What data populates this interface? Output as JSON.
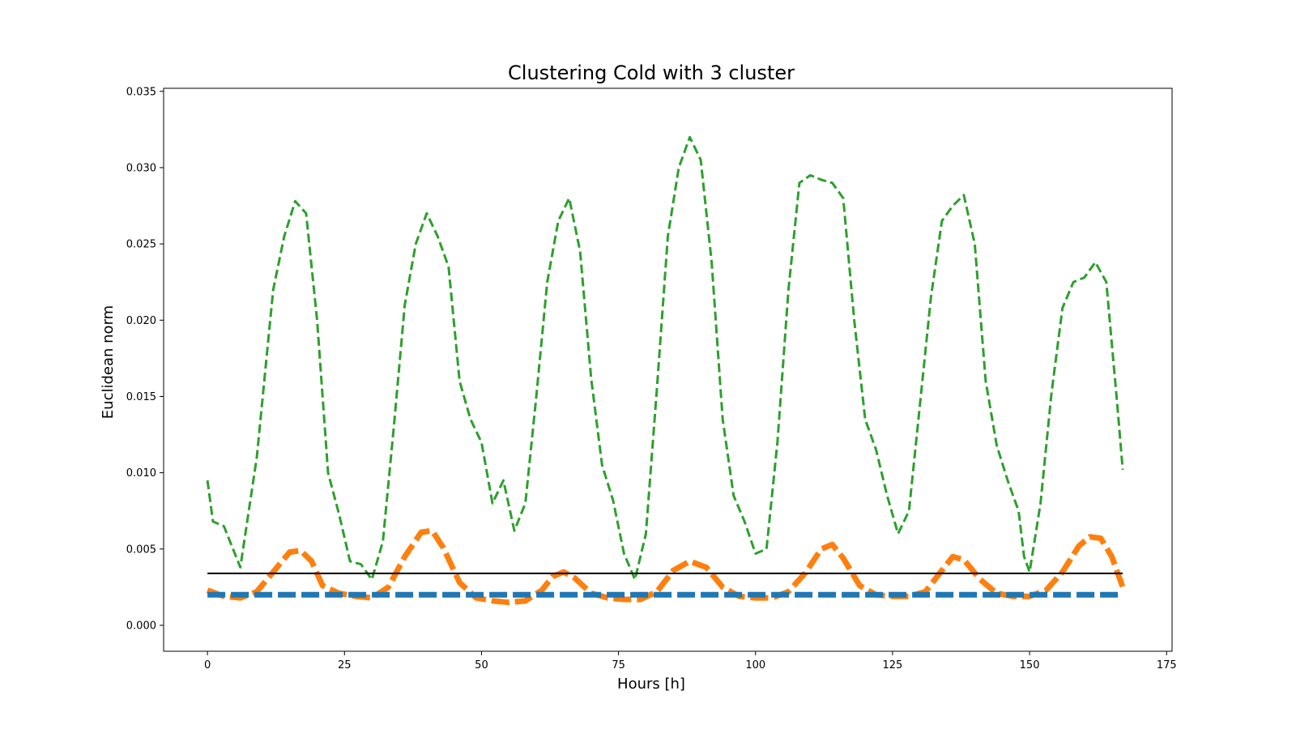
{
  "chart_data": {
    "type": "line",
    "title": "Clustering Cold with 3 cluster",
    "xlabel": "Hours [h]",
    "ylabel": "Euclidean norm",
    "xlim": [
      -8,
      176
    ],
    "ylim": [
      -0.0017,
      0.0352
    ],
    "xticks": [
      0,
      25,
      50,
      75,
      100,
      125,
      150,
      175
    ],
    "xtick_labels": [
      "0",
      "25",
      "50",
      "75",
      "100",
      "125",
      "150",
      "175"
    ],
    "yticks": [
      0.0,
      0.005,
      0.01,
      0.015,
      0.02,
      0.025,
      0.03,
      0.035
    ],
    "ytick_labels": [
      "0.000",
      "0.005",
      "0.010",
      "0.015",
      "0.020",
      "0.025",
      "0.030",
      "0.035"
    ],
    "grid": false,
    "legend": "none",
    "colors": {
      "green": "#2ca02c",
      "orange": "#ff7f0e",
      "blue": "#1f77b4",
      "black": "#000000",
      "gray": "#8c8c8c"
    },
    "series": [
      {
        "color": "#2ca02c",
        "style": "dashed",
        "x": [
          0,
          1,
          3,
          6,
          9,
          12,
          14,
          16,
          18,
          20,
          22,
          24,
          26,
          28,
          30,
          32,
          34,
          36,
          38,
          40,
          42,
          44,
          46,
          48,
          50,
          52,
          54,
          56,
          58,
          60,
          62,
          64,
          66,
          68,
          70,
          72,
          74,
          76,
          78,
          80,
          82,
          84,
          86,
          88,
          90,
          92,
          94,
          96,
          98,
          100,
          102,
          104,
          106,
          108,
          110,
          112,
          114,
          116,
          118,
          120,
          122,
          124,
          126,
          128,
          130,
          132,
          134,
          136,
          138,
          140,
          142,
          144,
          146,
          148,
          149,
          150,
          152,
          154,
          156,
          158,
          160,
          162,
          164,
          166,
          167
        ],
        "values": [
          0.0095,
          0.0068,
          0.0065,
          0.0038,
          0.011,
          0.022,
          0.0255,
          0.0278,
          0.027,
          0.02,
          0.01,
          0.0073,
          0.0042,
          0.004,
          0.003,
          0.0055,
          0.013,
          0.021,
          0.025,
          0.027,
          0.0255,
          0.0235,
          0.016,
          0.0135,
          0.012,
          0.008,
          0.0095,
          0.0062,
          0.008,
          0.015,
          0.0225,
          0.0265,
          0.028,
          0.0245,
          0.0162,
          0.0105,
          0.0082,
          0.0047,
          0.003,
          0.006,
          0.0155,
          0.0255,
          0.03,
          0.032,
          0.0305,
          0.0238,
          0.0135,
          0.0085,
          0.0068,
          0.0047,
          0.005,
          0.012,
          0.022,
          0.029,
          0.0295,
          0.0292,
          0.029,
          0.028,
          0.02,
          0.0135,
          0.0115,
          0.0085,
          0.006,
          0.0075,
          0.0145,
          0.0215,
          0.0265,
          0.0275,
          0.0282,
          0.025,
          0.016,
          0.0118,
          0.0095,
          0.0075,
          0.0045,
          0.0035,
          0.008,
          0.0152,
          0.0208,
          0.0225,
          0.0228,
          0.0238,
          0.0225,
          0.0145,
          0.0102
        ]
      },
      {
        "color": "#ff7f0e",
        "style": "dashed-thick",
        "x": [
          0,
          3,
          6,
          9,
          12,
          15,
          17,
          19,
          21,
          24,
          27,
          30,
          33,
          36,
          39,
          41,
          43,
          46,
          49,
          52,
          55,
          58,
          61,
          63,
          65,
          67,
          70,
          73,
          76,
          79,
          82,
          85,
          88,
          91,
          94,
          97,
          100,
          103,
          106,
          109,
          112,
          114,
          116,
          119,
          122,
          125,
          128,
          131,
          134,
          136,
          138,
          141,
          144,
          147,
          150,
          153,
          156,
          159,
          161,
          163,
          165,
          167
        ],
        "values": [
          0.0023,
          0.0019,
          0.0018,
          0.0022,
          0.0035,
          0.0048,
          0.0049,
          0.0042,
          0.0026,
          0.0021,
          0.0019,
          0.0018,
          0.0025,
          0.0045,
          0.0061,
          0.0062,
          0.0051,
          0.0028,
          0.0018,
          0.0016,
          0.0015,
          0.0016,
          0.0023,
          0.0032,
          0.0035,
          0.0031,
          0.0021,
          0.0018,
          0.0017,
          0.0017,
          0.0022,
          0.0036,
          0.0042,
          0.0038,
          0.0025,
          0.0019,
          0.0018,
          0.0018,
          0.0022,
          0.0034,
          0.005,
          0.0053,
          0.0044,
          0.0026,
          0.002,
          0.0019,
          0.0019,
          0.0022,
          0.0036,
          0.0045,
          0.0043,
          0.003,
          0.0021,
          0.0019,
          0.0019,
          0.0023,
          0.0035,
          0.0052,
          0.0058,
          0.0057,
          0.0045,
          0.0025
        ]
      },
      {
        "color": "#1f77b4",
        "style": "dashed-thick",
        "x": [
          0,
          167
        ],
        "values": [
          0.002,
          0.002
        ]
      },
      {
        "color": "#000000",
        "style": "solid",
        "x": [
          0,
          167
        ],
        "values": [
          0.0034,
          0.0034
        ]
      }
    ]
  }
}
